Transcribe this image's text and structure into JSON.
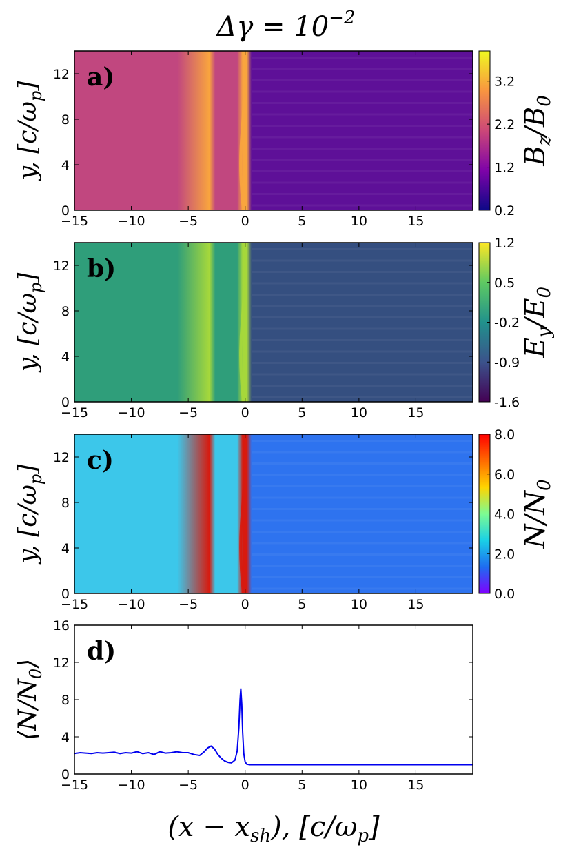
{
  "figure": {
    "title": "Δγ = 10",
    "title_exponent": "−2"
  },
  "chart_data": [
    {
      "type": "heatmap",
      "panel": "a)",
      "field": "B_z/B_0",
      "colorbar_label": {
        "main": "B",
        "sub": "z",
        "mid": "/B",
        "sub2": "0"
      },
      "colormap": [
        "#0d0887",
        "#7e03a8",
        "#cc4778",
        "#f89540",
        "#f0f921"
      ],
      "colorbar_ticks": [
        "3.2",
        "2.2",
        "1.2",
        "0.2"
      ],
      "clim": [
        0.2,
        3.9
      ],
      "xlim": [
        -15,
        20
      ],
      "ylim": [
        0,
        14
      ],
      "x_ticks": [
        "−15",
        "−10",
        "−5",
        "0",
        "5",
        "10",
        "15"
      ],
      "y_ticks": [
        "12",
        "8",
        "4",
        "0"
      ],
      "ylabel": {
        "var": "y,",
        "bracket": "[c/ω",
        "sub": "p",
        "close": "]"
      },
      "upstream_color": "#5e1098",
      "downstream_color": "#c1477f",
      "shock_color": "#f9a53e"
    },
    {
      "type": "heatmap",
      "panel": "b)",
      "field": "E_y/E_0",
      "colorbar_label": {
        "main": "E",
        "sub": "y",
        "mid": "/E",
        "sub2": "0"
      },
      "colormap": [
        "#440154",
        "#3b528b",
        "#21918c",
        "#5ec962",
        "#fde725"
      ],
      "colorbar_ticks": [
        "1.2",
        "0.5",
        "-0.2",
        "-0.9",
        "-1.6"
      ],
      "clim": [
        -1.6,
        1.2
      ],
      "xlim": [
        -15,
        20
      ],
      "ylim": [
        0,
        14
      ],
      "x_ticks": [
        "−15",
        "−10",
        "−5",
        "0",
        "5",
        "10",
        "15"
      ],
      "y_ticks": [
        "12",
        "8",
        "4",
        "0"
      ],
      "ylabel": {
        "var": "y,",
        "bracket": "[c/ω",
        "sub": "p",
        "close": "]"
      },
      "upstream_color": "#354f80",
      "downstream_color": "#2f9e7a",
      "shock_color": "#a6d83b"
    },
    {
      "type": "heatmap",
      "panel": "c)",
      "field": "N/N_0",
      "colorbar_label": {
        "main": "N/N",
        "sub": "0"
      },
      "colormap": [
        "#7f00ff",
        "#1e6cf0",
        "#1ad0e6",
        "#7cfc93",
        "#ffd400",
        "#ff6a00",
        "#ff0000"
      ],
      "colorbar_ticks": [
        "8.0",
        "6.0",
        "4.0",
        "2.0",
        "0.0"
      ],
      "clim": [
        0,
        8
      ],
      "xlim": [
        -15,
        20
      ],
      "ylim": [
        0,
        14
      ],
      "x_ticks": [
        "−15",
        "−10",
        "−5",
        "0",
        "5",
        "10",
        "15"
      ],
      "y_ticks": [
        "12",
        "8",
        "4",
        "0"
      ],
      "ylabel": {
        "var": "y,",
        "bracket": "[c/ω",
        "sub": "p",
        "close": "]"
      },
      "upstream_color": "#2e73ef",
      "downstream_color": "#3cc7ea",
      "shock_color": "#d81a0e"
    },
    {
      "type": "line",
      "panel": "d)",
      "series": [
        {
          "name": "<N/N0>",
          "color": "#0000ee",
          "x": [
            -15,
            -14.5,
            -14,
            -13.5,
            -13,
            -12.5,
            -12,
            -11.5,
            -11,
            -10.5,
            -10,
            -9.5,
            -9,
            -8.5,
            -8,
            -7.5,
            -7,
            -6.5,
            -6,
            -5.5,
            -5,
            -4.5,
            -4,
            -3.6,
            -3.3,
            -3.0,
            -2.7,
            -2.4,
            -2.1,
            -1.8,
            -1.5,
            -1.2,
            -0.9,
            -0.7,
            -0.55,
            -0.45,
            -0.38,
            -0.3,
            -0.22,
            -0.12,
            0.0,
            0.15,
            0.4,
            0.8,
            1.5,
            3,
            5,
            10,
            15,
            20
          ],
          "y": [
            2.2,
            2.3,
            2.25,
            2.2,
            2.3,
            2.25,
            2.3,
            2.35,
            2.2,
            2.3,
            2.25,
            2.4,
            2.2,
            2.3,
            2.1,
            2.4,
            2.25,
            2.3,
            2.4,
            2.3,
            2.3,
            2.1,
            2.0,
            2.4,
            2.8,
            3.0,
            2.7,
            2.1,
            1.7,
            1.4,
            1.25,
            1.2,
            1.5,
            2.5,
            5.0,
            8.0,
            9.2,
            7.5,
            4.5,
            2.2,
            1.3,
            1.05,
            1.0,
            1.0,
            1.0,
            1.0,
            1.0,
            1.0,
            1.0,
            1.0
          ]
        }
      ],
      "xlim": [
        -15,
        20
      ],
      "ylim": [
        0,
        16
      ],
      "x_ticks": [
        "−15",
        "−10",
        "−5",
        "0",
        "5",
        "10",
        "15"
      ],
      "y_ticks": [
        "16",
        "12",
        "8",
        "4",
        "0"
      ],
      "ylabel": {
        "open": "⟨N/N",
        "sub": "0",
        "close": "⟩"
      },
      "xlabel": {
        "open": "(x − x",
        "sub": "sh",
        "mid": "), [c/ω",
        "sub2": "p",
        "close": "]"
      }
    }
  ]
}
